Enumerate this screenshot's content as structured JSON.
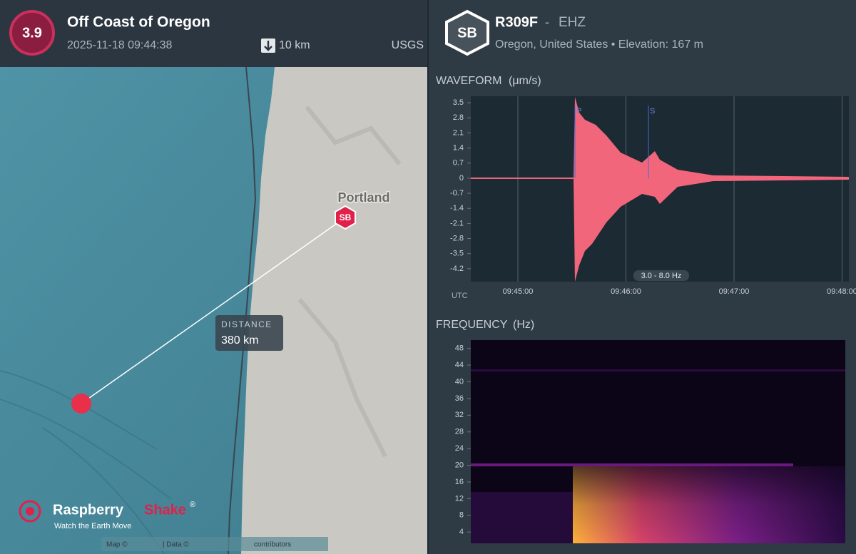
{
  "event": {
    "magnitude": "3.9",
    "title": "Off Coast of Oregon",
    "time": "2025-11-18 09:44:38",
    "depth": "10 km",
    "source": "USGS"
  },
  "map": {
    "city": "Portland",
    "station_marker": "SB",
    "distance_label": "DISTANCE",
    "distance": "380 km",
    "logo": {
      "name": "Raspberry",
      "name_accent": "Shake",
      "mark": "®",
      "tagline": "Watch the Earth Move"
    },
    "attribution": [
      "Map ©",
      "| Data ©",
      "contributors"
    ]
  },
  "station": {
    "badge": "SB",
    "code": "R309F",
    "separator": "-",
    "channel": "EHZ",
    "location": "Oregon, United States • Elevation: 167 m"
  },
  "waveform": {
    "title": "WAVEFORM",
    "unit": "(μm/s)",
    "ylim": [
      -4.8,
      3.8
    ],
    "yticks": [
      3.5,
      2.8,
      2.1,
      1.4,
      0.7,
      0,
      -0.7,
      -1.4,
      -2.1,
      -2.8,
      -3.5,
      -4.2
    ],
    "xticks": [
      "09:45:00",
      "09:46:00",
      "09:47:00",
      "09:48:00"
    ],
    "timezone": "UTC",
    "filter": "3.0 - 8.0 Hz",
    "phases": [
      "P",
      "S"
    ]
  },
  "frequency": {
    "title": "FREQUENCY",
    "unit": "(Hz)",
    "ylim": [
      1.3,
      50
    ],
    "yticks": [
      48,
      44,
      40,
      36,
      32,
      28,
      24,
      20,
      16,
      12,
      8,
      4
    ]
  }
}
